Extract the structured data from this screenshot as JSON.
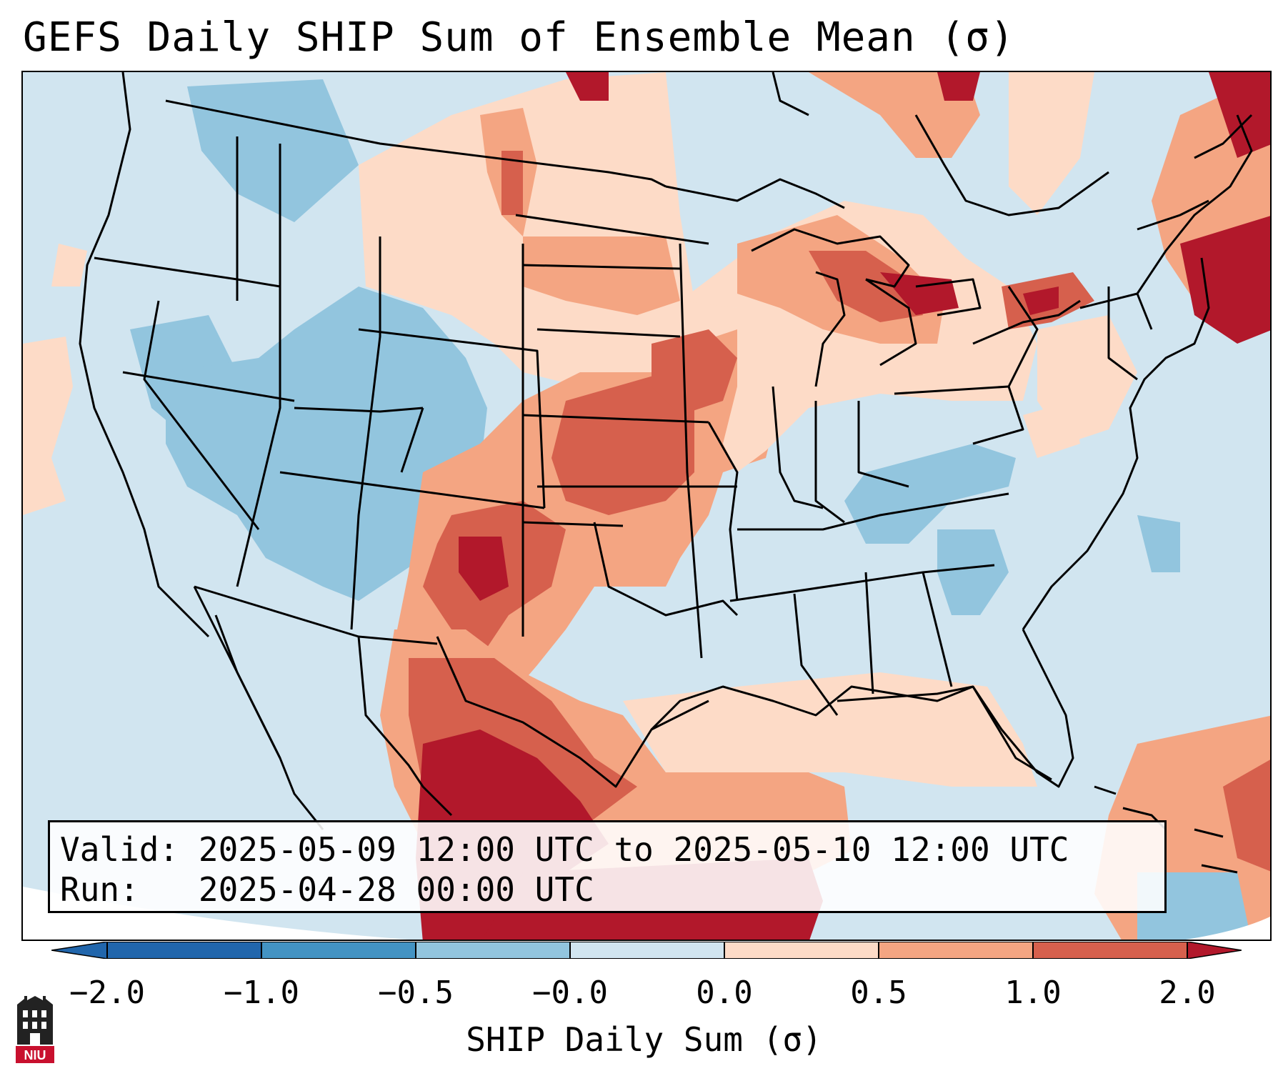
{
  "title": "GEFS Daily SHIP Sum of Ensemble Mean (σ)",
  "info": {
    "valid_label": "Valid:",
    "valid_value": "2025-05-09 12:00 UTC to 2025-05-10 12:00 UTC",
    "run_label": "Run:",
    "run_value": "2025-04-28 00:00 UTC"
  },
  "colorbar": {
    "label": "SHIP Daily Sum (σ)",
    "ticks": [
      "−2.0",
      "−1.0",
      "−0.5",
      "−0.0",
      "0.0",
      "0.5",
      "1.0",
      "2.0"
    ],
    "colors": [
      "#2166ac",
      "#4393c3",
      "#92c5de",
      "#d1e5f0",
      "#fddbc7",
      "#f4a582",
      "#d6604d",
      "#b2182b"
    ]
  },
  "logo": {
    "icon": "niu-logo-icon",
    "text": "NIU"
  }
}
